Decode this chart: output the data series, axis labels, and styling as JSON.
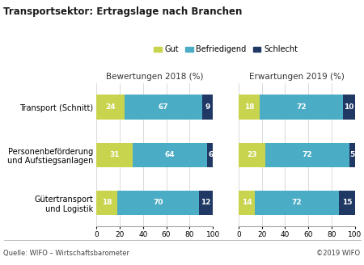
{
  "title": "Transportsektor: Ertragslage nach Branchen",
  "legend_labels": [
    "Gut",
    "Befriedigend",
    "Schlecht"
  ],
  "colors": [
    "#c8d44e",
    "#4bacc6",
    "#1f3864"
  ],
  "categories": [
    "Transport (Schnitt)",
    "Personenbeförderung\nund Aufstiegsanlagen",
    "Gütertransport\nund Logistik"
  ],
  "bewertungen_2018": {
    "gut": [
      24,
      31,
      18
    ],
    "befriedigend": [
      67,
      64,
      70
    ],
    "schlecht": [
      9,
      6,
      12
    ]
  },
  "erwartungen_2019": {
    "gut": [
      18,
      23,
      14
    ],
    "befriedigend": [
      72,
      72,
      72
    ],
    "schlecht": [
      10,
      5,
      15
    ]
  },
  "panel_titles": [
    "Bewertungen 2018 (%)",
    "Erwartungen 2019 (%)"
  ],
  "xlim": [
    0,
    100
  ],
  "xticks": [
    0,
    20,
    40,
    60,
    80,
    100
  ],
  "footer_left": "Quelle: WIFO – Wirtschaftsbarometer",
  "footer_right": "©2019 WIFO",
  "bar_height": 0.52,
  "label_fontsize": 6.5,
  "category_fontsize": 7.0,
  "title_fontsize": 8.5,
  "panel_title_fontsize": 7.5,
  "legend_fontsize": 7.0,
  "footer_fontsize": 6.0,
  "tick_fontsize": 6.5
}
